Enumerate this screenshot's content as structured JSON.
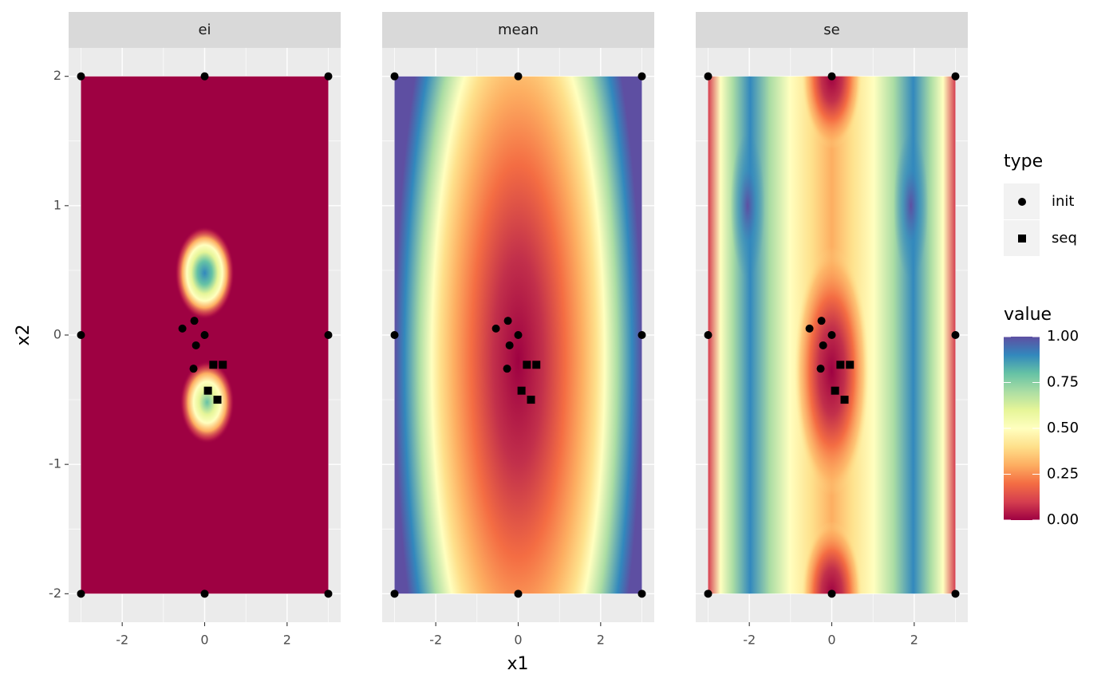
{
  "chart_data": {
    "type": "scatter",
    "facets": [
      "ei",
      "mean",
      "se"
    ],
    "x_label": "x1",
    "y_label": "x2",
    "xlim": [
      -3.3,
      3.3
    ],
    "ylim": [
      -2.22,
      2.22
    ],
    "xticks": [
      -2,
      0,
      2
    ],
    "yticks": [
      -2,
      -1,
      0,
      1,
      2
    ],
    "grid": true,
    "legend_title": "type",
    "series": [
      {
        "name": "init",
        "color": "#000000",
        "shape": "circle",
        "x": [
          -3,
          0,
          3,
          -3,
          3,
          -3,
          0,
          3,
          -0.54,
          -0.25,
          0,
          -0.21,
          -0.27
        ],
        "y": [
          2,
          2,
          2,
          0,
          0,
          -2,
          -2,
          -2,
          0.05,
          0.11,
          0,
          -0.08,
          -0.26
        ]
      },
      {
        "name": "seq",
        "color": "#000000",
        "shape": "square",
        "x": [
          0.21,
          0.44,
          0.08,
          0.31
        ],
        "y": [
          -0.23,
          -0.23,
          -0.43,
          -0.5
        ]
      }
    ],
    "colorbar": {
      "title": "value",
      "limits": [
        0,
        1
      ],
      "ticks": [
        {
          "value": 0,
          "label": "0.00"
        },
        {
          "value": 0.25,
          "label": "0.25"
        },
        {
          "value": 0.5,
          "label": "0.50"
        },
        {
          "value": 0.75,
          "label": "0.75"
        },
        {
          "value": 1,
          "label": "1.00"
        }
      ],
      "colors": [
        "#9E0142",
        "#D53E4F",
        "#F46D43",
        "#FDAE61",
        "#FEE08B",
        "#FFFFBF",
        "#E6F598",
        "#ABDDA4",
        "#66C2A5",
        "#3288BD",
        "#5E4FA2"
      ]
    }
  }
}
